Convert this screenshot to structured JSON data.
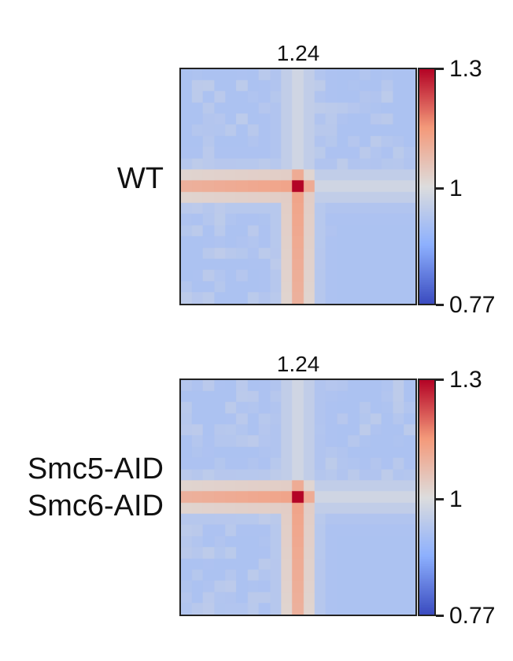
{
  "chart_data": [
    {
      "type": "heatmap",
      "row_label": [
        "WT"
      ],
      "score": "1.24",
      "colorbar": {
        "min": 0.77,
        "mid": 1,
        "max": 1.3,
        "labels": [
          "1.3",
          "1",
          "0.77"
        ],
        "colormap": "coolwarm"
      },
      "grid_size": 21,
      "features": {
        "peak_value": 1.3,
        "stripe_value": 1.13,
        "background_value": 0.93,
        "lower_right_value": 0.85
      }
    },
    {
      "type": "heatmap",
      "row_label": [
        "Smc5-AID",
        "Smc6-AID"
      ],
      "score": "1.24",
      "colorbar": {
        "min": 0.77,
        "mid": 1,
        "max": 1.3,
        "labels": [
          "1.3",
          "1",
          "0.77"
        ],
        "colormap": "coolwarm"
      },
      "grid_size": 21,
      "features": {
        "peak_value": 1.3,
        "stripe_value": 1.13,
        "background_value": 0.93,
        "lower_right_value": 0.85
      }
    }
  ],
  "colors": {
    "low": "#3b4cc0",
    "mid": "#dddddd",
    "high": "#b40426"
  }
}
